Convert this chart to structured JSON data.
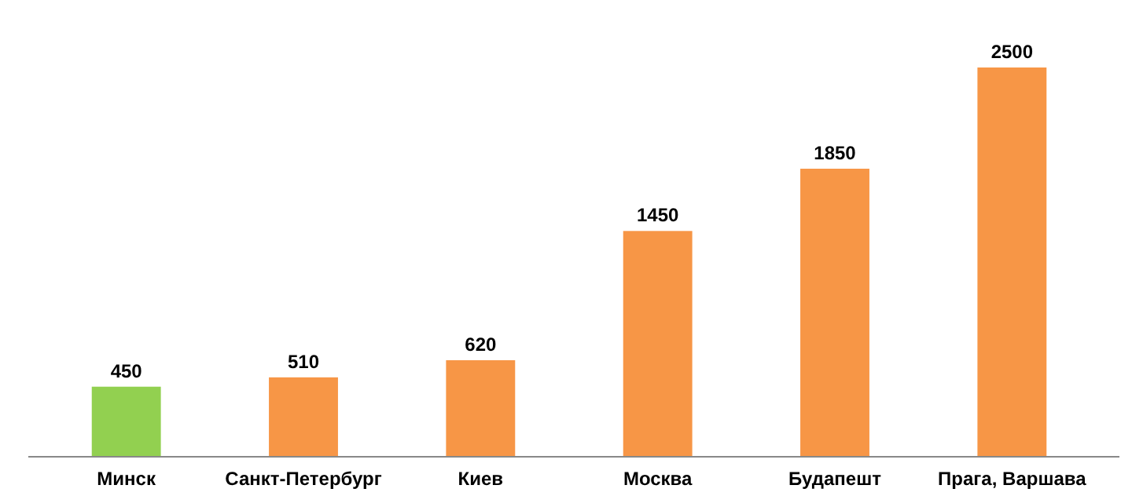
{
  "chart_data": {
    "type": "bar",
    "categories": [
      "Минск",
      "Санкт-Петербург",
      "Киев",
      "Москва",
      "Будапешт",
      "Прага, Варшава"
    ],
    "values": [
      450,
      510,
      620,
      1450,
      1850,
      2500
    ],
    "colors": [
      "#92d050",
      "#f79646",
      "#f79646",
      "#f79646",
      "#f79646",
      "#f79646"
    ],
    "data_labels": true
  }
}
